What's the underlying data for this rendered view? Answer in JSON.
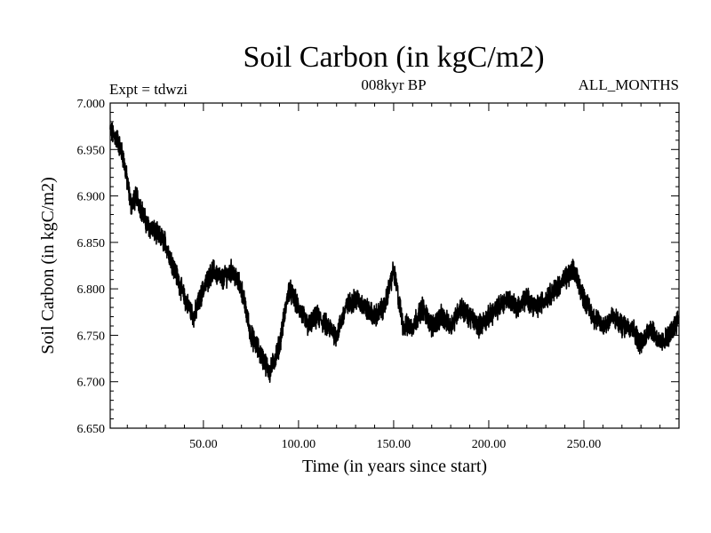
{
  "chart_data": {
    "type": "line",
    "title": "Soil Carbon (in kgC/m2)",
    "subtitle_left": "Expt = tdwzi",
    "subtitle_center": "008kyr BP",
    "subtitle_right": "ALL_MONTHS",
    "xlabel": "Time (in years since start)",
    "ylabel": "Soil Carbon (in kgC/m2)",
    "xlim": [
      1,
      300
    ],
    "ylim": [
      6.65,
      7.0
    ],
    "x_ticks": [
      50,
      100,
      150,
      200,
      250
    ],
    "x_tick_labels": [
      "50.00",
      "100.00",
      "150.00",
      "200.00",
      "250.00"
    ],
    "y_ticks": [
      6.65,
      6.7,
      6.75,
      6.8,
      6.85,
      6.9,
      6.95,
      7.0
    ],
    "y_tick_labels": [
      "6.650",
      "6.700",
      "6.750",
      "6.800",
      "6.850",
      "6.900",
      "6.950",
      "7.000"
    ],
    "grid": false,
    "series": [
      {
        "color": "#000000",
        "x": [
          1,
          5,
          8,
          12,
          15,
          20,
          25,
          30,
          35,
          40,
          45,
          50,
          55,
          60,
          65,
          70,
          75,
          80,
          85,
          90,
          95,
          100,
          105,
          110,
          115,
          120,
          125,
          130,
          135,
          140,
          145,
          150,
          155,
          160,
          165,
          170,
          175,
          180,
          185,
          190,
          195,
          200,
          205,
          210,
          215,
          220,
          225,
          230,
          235,
          240,
          245,
          250,
          255,
          260,
          265,
          270,
          275,
          280,
          285,
          290,
          295,
          300
        ],
        "y": [
          6.97,
          6.96,
          6.94,
          6.89,
          6.9,
          6.87,
          6.86,
          6.85,
          6.82,
          6.79,
          6.77,
          6.8,
          6.82,
          6.81,
          6.82,
          6.8,
          6.75,
          6.73,
          6.71,
          6.74,
          6.8,
          6.78,
          6.76,
          6.77,
          6.76,
          6.75,
          6.78,
          6.79,
          6.78,
          6.77,
          6.78,
          6.82,
          6.76,
          6.76,
          6.78,
          6.76,
          6.77,
          6.76,
          6.78,
          6.77,
          6.76,
          6.77,
          6.78,
          6.79,
          6.78,
          6.79,
          6.78,
          6.79,
          6.8,
          6.81,
          6.82,
          6.79,
          6.77,
          6.76,
          6.77,
          6.76,
          6.76,
          6.74,
          6.76,
          6.74,
          6.75,
          6.77
        ]
      }
    ]
  }
}
